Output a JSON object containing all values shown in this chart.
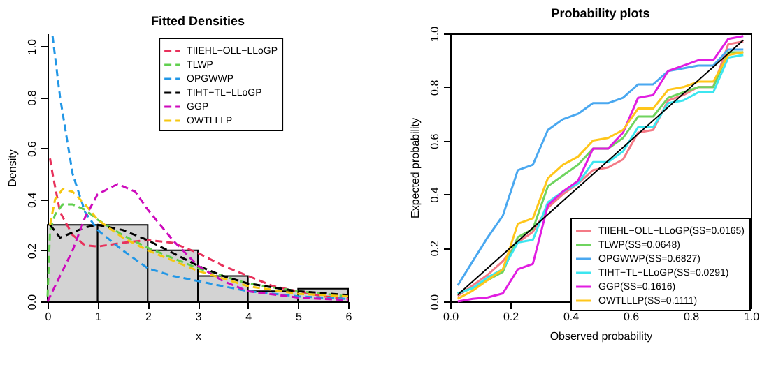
{
  "chart_data": [
    {
      "type": "histogram",
      "title": "Fitted Densities",
      "xlabel": "x",
      "ylabel": "Density",
      "bins": [
        0,
        1,
        2,
        3,
        4,
        5,
        6
      ],
      "values": [
        0.3,
        0.3,
        0.2,
        0.1,
        0.04,
        0.05
      ],
      "color": "#d3d3d3",
      "xlim": [
        0,
        6
      ],
      "ylim": [
        0,
        1.05
      ],
      "xticks": [
        0,
        1,
        2,
        3,
        4,
        5,
        6
      ],
      "yticks": [
        {
          "value": 0,
          "label": "0.0"
        },
        {
          "value": 0.2,
          "label": "0.2"
        },
        {
          "value": 0.4,
          "label": "0.4"
        },
        {
          "value": 0.6,
          "label": "0.6"
        },
        {
          "value": 0.8,
          "label": "0.8"
        },
        {
          "value": 1.0,
          "label": "1.0"
        }
      ],
      "grid": false,
      "legend": "top",
      "line_style": "dashed",
      "series": [
        {
          "name": "TIIEHL−OLL−LLoGP",
          "color": "#e8315b",
          "type": "line",
          "x": [
            0.05,
            0.1,
            0.25,
            0.5,
            0.75,
            1,
            1.5,
            2,
            2.5,
            3,
            3.5,
            4,
            4.5,
            5,
            5.5,
            6
          ],
          "values": [
            0.56,
            0.5,
            0.35,
            0.26,
            0.22,
            0.215,
            0.23,
            0.24,
            0.23,
            0.19,
            0.14,
            0.1,
            0.06,
            0.04,
            0.02,
            0.01
          ]
        },
        {
          "name": "TLWP",
          "color": "#61d04f",
          "type": "line",
          "x": [
            0,
            0.05,
            0.15,
            0.3,
            0.5,
            0.75,
            1,
            1.5,
            2,
            2.5,
            3,
            3.5,
            4,
            5,
            6
          ],
          "values": [
            0.02,
            0.28,
            0.34,
            0.38,
            0.38,
            0.36,
            0.32,
            0.26,
            0.21,
            0.17,
            0.13,
            0.1,
            0.07,
            0.04,
            0.02
          ]
        },
        {
          "name": "OPGWWP",
          "color": "#2297e6",
          "type": "line",
          "x": [
            0.1,
            0.25,
            0.5,
            0.75,
            1,
            1.5,
            2,
            2.5,
            3,
            4,
            5,
            6
          ],
          "values": [
            1.04,
            0.8,
            0.5,
            0.35,
            0.28,
            0.2,
            0.13,
            0.1,
            0.08,
            0.04,
            0.02,
            0.01
          ]
        },
        {
          "name": "TIHT−TL−LLoGP",
          "color": "#000000",
          "type": "line",
          "x": [
            0.05,
            0.25,
            0.5,
            0.75,
            1,
            1.5,
            2,
            2.5,
            3,
            3.5,
            4,
            5,
            6
          ],
          "values": [
            0.3,
            0.25,
            0.27,
            0.29,
            0.3,
            0.28,
            0.24,
            0.19,
            0.14,
            0.1,
            0.07,
            0.04,
            0.025
          ]
        },
        {
          "name": "GGP",
          "color": "#cd0bbc",
          "type": "line",
          "x": [
            0,
            0.5,
            0.75,
            1,
            1.4,
            1.75,
            2,
            2.5,
            3,
            3.5,
            4,
            5,
            6
          ],
          "values": [
            0,
            0.2,
            0.33,
            0.42,
            0.46,
            0.43,
            0.36,
            0.24,
            0.14,
            0.08,
            0.04,
            0.015,
            0.005
          ]
        },
        {
          "name": "OWTLLLP",
          "color": "#f5c710",
          "type": "line",
          "x": [
            0.05,
            0.15,
            0.3,
            0.5,
            0.75,
            1,
            1.5,
            2,
            2.5,
            3,
            3.5,
            4,
            5,
            6
          ],
          "values": [
            0.3,
            0.4,
            0.44,
            0.43,
            0.38,
            0.32,
            0.25,
            0.2,
            0.16,
            0.12,
            0.09,
            0.06,
            0.03,
            0.02
          ]
        }
      ]
    },
    {
      "type": "line",
      "title": "Probability plots",
      "xlabel": "Observed probability",
      "ylabel": "Expected probability",
      "x": [
        0.025,
        0.075,
        0.125,
        0.175,
        0.225,
        0.275,
        0.325,
        0.375,
        0.425,
        0.475,
        0.525,
        0.575,
        0.625,
        0.675,
        0.725,
        0.775,
        0.825,
        0.875,
        0.925,
        0.975
      ],
      "xlim": [
        0,
        1
      ],
      "ylim": [
        0,
        1
      ],
      "xticks": [
        {
          "value": 0,
          "label": "0.0"
        },
        {
          "value": 0.2,
          "label": "0.2"
        },
        {
          "value": 0.4,
          "label": "0.4"
        },
        {
          "value": 0.6,
          "label": "0.6"
        },
        {
          "value": 0.8,
          "label": "0.8"
        },
        {
          "value": 1.0,
          "label": "1.0"
        }
      ],
      "yticks": [
        {
          "value": 0,
          "label": "0.0"
        },
        {
          "value": 0.2,
          "label": "0.2"
        },
        {
          "value": 0.4,
          "label": "0.4"
        },
        {
          "value": 0.6,
          "label": "0.6"
        },
        {
          "value": 0.8,
          "label": "0.8"
        },
        {
          "value": 1.0,
          "label": "1.0"
        }
      ],
      "grid": false,
      "legend": "bottom",
      "line_style": "solid",
      "series": [
        {
          "name": "TIIEHL−OLL−LLoGP(SS=0.0165)",
          "color": "#f47a86",
          "values": [
            0.02,
            0.06,
            0.1,
            0.15,
            0.22,
            0.26,
            0.35,
            0.4,
            0.44,
            0.49,
            0.5,
            0.53,
            0.63,
            0.64,
            0.75,
            0.77,
            0.8,
            0.8,
            0.96,
            0.97
          ]
        },
        {
          "name": "TLWP(SS=0.0648)",
          "color": "#6fd45f",
          "values": [
            0.03,
            0.05,
            0.08,
            0.11,
            0.24,
            0.27,
            0.43,
            0.47,
            0.51,
            0.57,
            0.57,
            0.61,
            0.69,
            0.69,
            0.76,
            0.78,
            0.8,
            0.8,
            0.93,
            0.93
          ]
        },
        {
          "name": "OPGWWP(SS=0.6827)",
          "color": "#4aa8f0",
          "values": [
            0.06,
            0.15,
            0.24,
            0.32,
            0.49,
            0.51,
            0.64,
            0.68,
            0.7,
            0.74,
            0.74,
            0.76,
            0.81,
            0.81,
            0.86,
            0.87,
            0.88,
            0.88,
            0.94,
            0.94
          ]
        },
        {
          "name": "TIHT−TL−LLoGP(SS=0.0291)",
          "color": "#3ce6f0",
          "values": [
            0.03,
            0.05,
            0.09,
            0.12,
            0.22,
            0.23,
            0.37,
            0.41,
            0.44,
            0.52,
            0.52,
            0.56,
            0.65,
            0.65,
            0.74,
            0.75,
            0.78,
            0.78,
            0.91,
            0.92
          ]
        },
        {
          "name": "GGP(SS=0.1616)",
          "color": "#e11ee1",
          "values": [
            0.0,
            0.01,
            0.015,
            0.03,
            0.12,
            0.14,
            0.36,
            0.41,
            0.45,
            0.57,
            0.57,
            0.63,
            0.76,
            0.77,
            0.86,
            0.88,
            0.9,
            0.9,
            0.98,
            0.99
          ]
        },
        {
          "name": "OWTLLLP(SS=0.1111)",
          "color": "#ffc61a",
          "values": [
            0.01,
            0.04,
            0.08,
            0.12,
            0.29,
            0.31,
            0.46,
            0.51,
            0.54,
            0.6,
            0.61,
            0.64,
            0.72,
            0.72,
            0.79,
            0.8,
            0.82,
            0.82,
            0.92,
            0.93
          ]
        },
        {
          "color": "#000000",
          "x": [
            0.025,
            0.975
          ],
          "values": [
            0.025,
            0.975
          ]
        }
      ]
    }
  ]
}
